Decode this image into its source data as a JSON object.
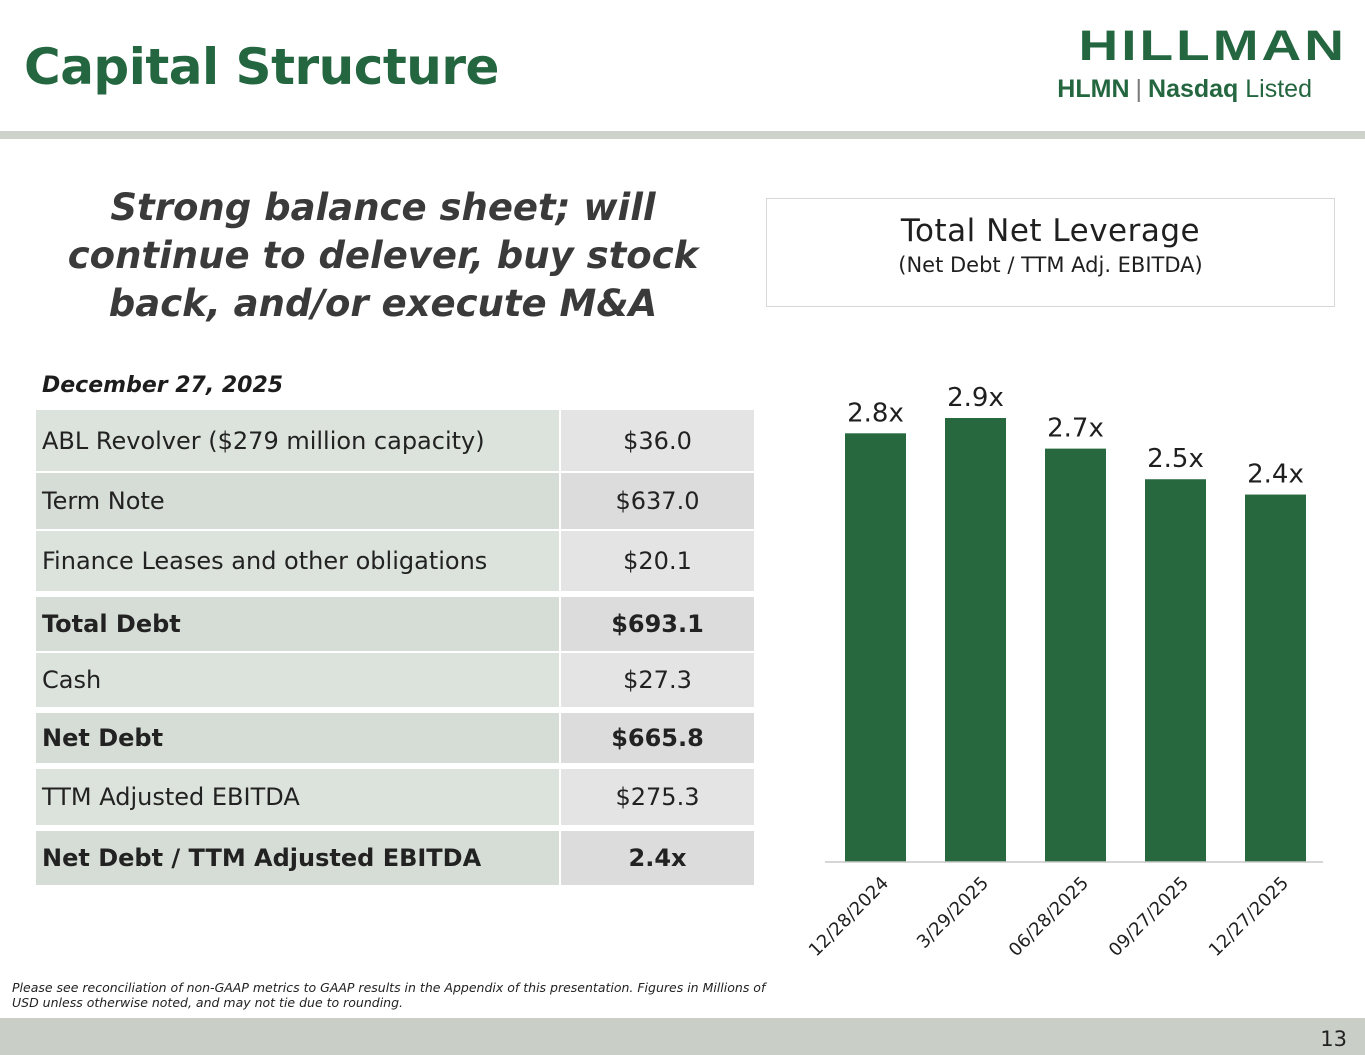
{
  "page": {
    "title": "Capital Structure",
    "headline": "Strong balance sheet; will continue to delever, buy stock back, and/or execute M&A",
    "page_number": "13",
    "footnote": "Please see reconciliation of non-GAAP metrics to GAAP results in the Appendix of this presentation. Figures in Millions of USD unless otherwise noted, and may not tie due to rounding."
  },
  "logo": {
    "wordmark": "HILLMAN",
    "ticker": "HLMN",
    "separator": "|",
    "exchange": "Nasdaq",
    "listed": "Listed",
    "color": "#24663f"
  },
  "table": {
    "as_of": "December 27, 2025",
    "rows": [
      {
        "label": "ABL Revolver ($279 million capacity)",
        "value": "$36.0"
      },
      {
        "label": "Term Note",
        "value": "$637.0"
      },
      {
        "label": "Finance Leases and other obligations",
        "value": "$20.1"
      },
      {
        "label": "Total Debt",
        "value": "$693.1"
      },
      {
        "label": "Cash",
        "value": "$27.3"
      },
      {
        "label": "Net Debt",
        "value": "$665.8"
      },
      {
        "label": "TTM Adjusted EBITDA",
        "value": "$275.3"
      },
      {
        "label": "Net Debt / TTM Adjusted EBITDA",
        "value": "2.4x"
      }
    ]
  },
  "chart_data": {
    "type": "bar",
    "title": "Total Net Leverage",
    "subtitle": "(Net Debt / TTM Adj. EBITDA)",
    "categories": [
      "12/28/2024",
      "3/29/2025",
      "06/28/2025",
      "09/27/2025",
      "12/27/2025"
    ],
    "values": [
      2.8,
      2.9,
      2.7,
      2.5,
      2.4
    ],
    "data_labels": [
      "2.8x",
      "2.9x",
      "2.7x",
      "2.5x",
      "2.4x"
    ],
    "xlabel": "",
    "ylabel": "",
    "ylim": [
      0,
      2.9
    ],
    "grid": false,
    "bar_color": "#27683f"
  }
}
